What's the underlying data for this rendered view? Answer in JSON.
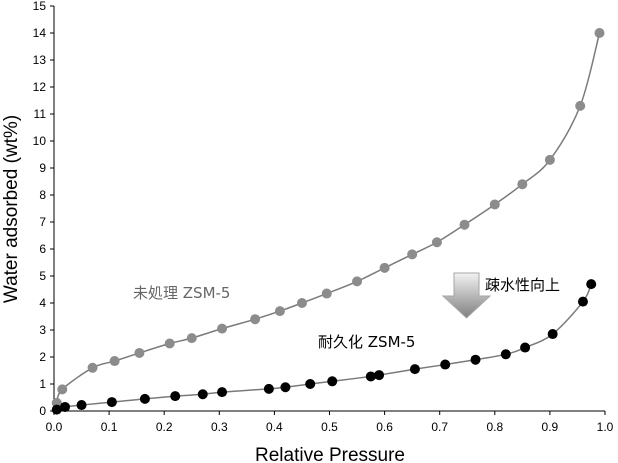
{
  "chart_data": {
    "type": "scatter",
    "xlabel": "Relative Pressure",
    "ylabel": "Water adsorbed  (wt%)",
    "xlim": [
      0,
      1.0
    ],
    "ylim": [
      0,
      15
    ],
    "xticks": [
      "0.0",
      "0.1",
      "0.2",
      "0.3",
      "0.4",
      "0.5",
      "0.6",
      "0.7",
      "0.8",
      "0.9",
      "1.0"
    ],
    "yticks": [
      "0",
      "1",
      "2",
      "3",
      "4",
      "5",
      "6",
      "7",
      "8",
      "9",
      "10",
      "11",
      "12",
      "13",
      "14",
      "15"
    ],
    "grid": false,
    "series": [
      {
        "name": "未処理 ZSM-5",
        "color": "#8c8c8c",
        "line_color": "#7a7a7a",
        "points": [
          [
            0.005,
            0.3
          ],
          [
            0.015,
            0.8
          ],
          [
            0.07,
            1.6
          ],
          [
            0.11,
            1.85
          ],
          [
            0.155,
            2.15
          ],
          [
            0.21,
            2.5
          ],
          [
            0.25,
            2.7
          ],
          [
            0.305,
            3.05
          ],
          [
            0.365,
            3.4
          ],
          [
            0.41,
            3.7
          ],
          [
            0.45,
            4.0
          ],
          [
            0.495,
            4.35
          ],
          [
            0.55,
            4.8
          ],
          [
            0.6,
            5.3
          ],
          [
            0.65,
            5.8
          ],
          [
            0.695,
            6.25
          ],
          [
            0.745,
            6.9
          ],
          [
            0.8,
            7.65
          ],
          [
            0.85,
            8.4
          ],
          [
            0.9,
            9.3
          ],
          [
            0.955,
            11.3
          ],
          [
            0.99,
            14.0
          ]
        ]
      },
      {
        "name": "耐久化 ZSM-5",
        "color": "#000000",
        "line_color": "#7a7a7a",
        "points": [
          [
            0.005,
            0.05
          ],
          [
            0.02,
            0.15
          ],
          [
            0.05,
            0.22
          ],
          [
            0.105,
            0.33
          ],
          [
            0.165,
            0.45
          ],
          [
            0.22,
            0.55
          ],
          [
            0.27,
            0.62
          ],
          [
            0.305,
            0.7
          ],
          [
            0.39,
            0.82
          ],
          [
            0.42,
            0.88
          ],
          [
            0.465,
            1.0
          ],
          [
            0.505,
            1.1
          ],
          [
            0.575,
            1.28
          ],
          [
            0.59,
            1.33
          ],
          [
            0.655,
            1.55
          ],
          [
            0.71,
            1.72
          ],
          [
            0.765,
            1.9
          ],
          [
            0.82,
            2.1
          ],
          [
            0.855,
            2.35
          ],
          [
            0.905,
            2.85
          ],
          [
            0.96,
            4.05
          ],
          [
            0.975,
            4.7
          ]
        ]
      }
    ],
    "annotations": {
      "arrow_label": "疎水性向上"
    }
  }
}
